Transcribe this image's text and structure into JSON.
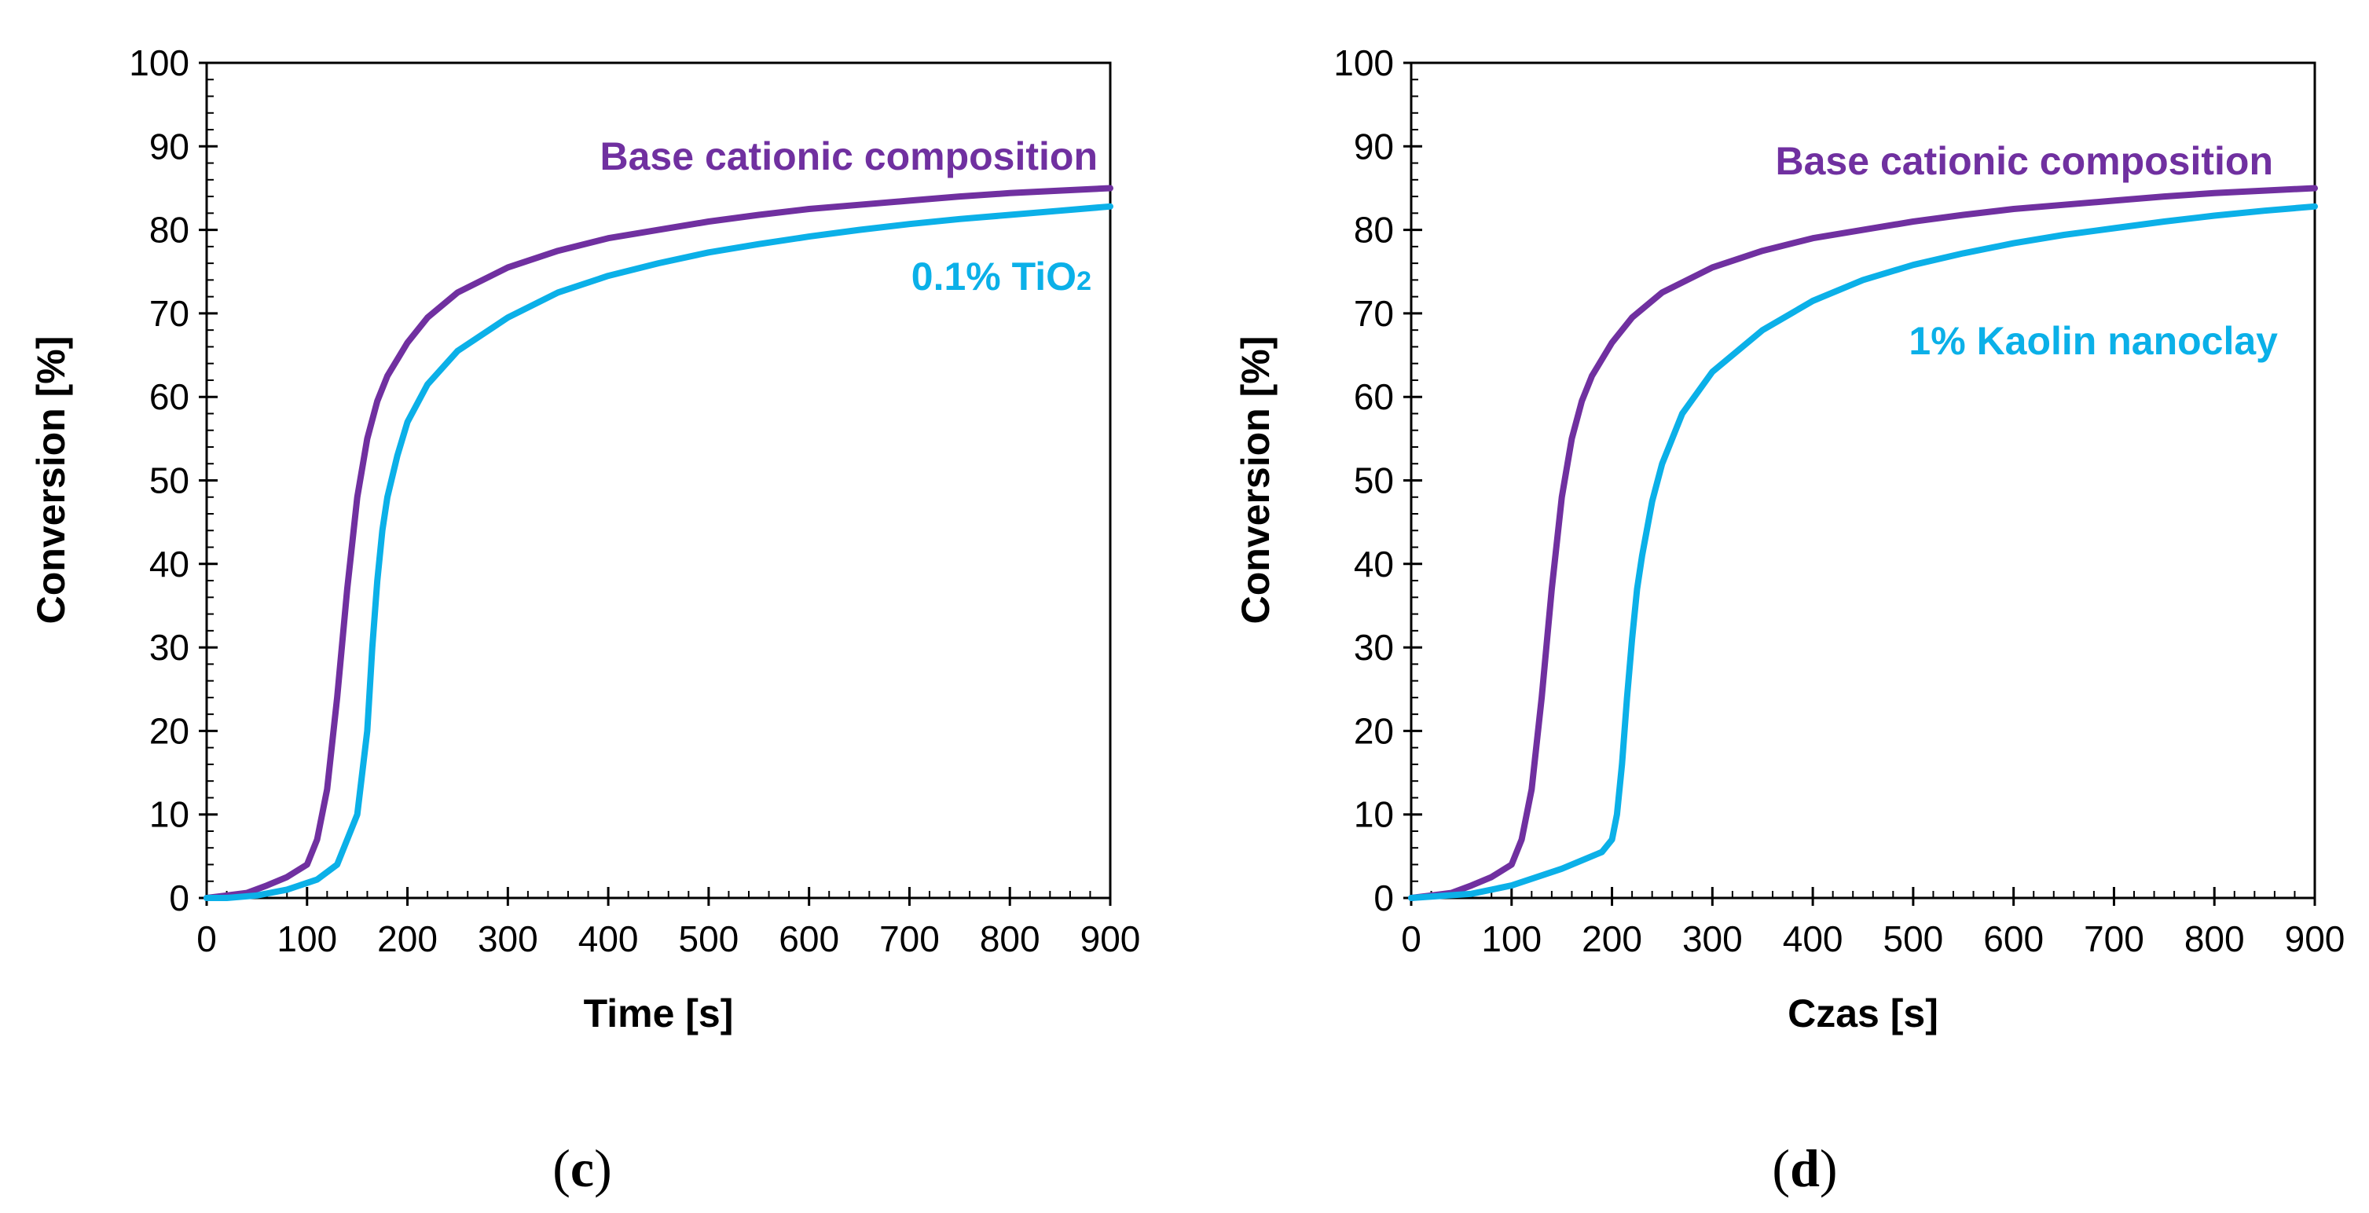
{
  "colors": {
    "base": "#7030a0",
    "additive": "#0bb0e8",
    "axis": "#000000"
  },
  "chart_data": [
    {
      "type": "line",
      "panel_label_open": "(",
      "panel_label_letter": "c",
      "panel_label_close": ")",
      "xlabel": "Time [s]",
      "ylabel": "Conversion [%]",
      "xlim": [
        0,
        900
      ],
      "ylim": [
        0,
        100
      ],
      "xticks": [
        0,
        100,
        200,
        300,
        400,
        500,
        600,
        700,
        800,
        900
      ],
      "yticks": [
        0,
        10,
        20,
        30,
        40,
        50,
        60,
        70,
        80,
        90,
        100
      ],
      "grid": false,
      "series": [
        {
          "name": "Base cationic composition",
          "color": "#7030a0",
          "x": [
            0,
            20,
            40,
            60,
            80,
            100,
            110,
            120,
            130,
            140,
            150,
            160,
            170,
            180,
            200,
            220,
            250,
            300,
            350,
            400,
            450,
            500,
            550,
            600,
            650,
            700,
            750,
            800,
            850,
            900
          ],
          "y": [
            0,
            0.3,
            0.6,
            1.5,
            2.5,
            4,
            7,
            13,
            24,
            37,
            48,
            55,
            59.5,
            62.5,
            66.5,
            69.5,
            72.5,
            75.5,
            77.5,
            79,
            80,
            81,
            81.8,
            82.5,
            83,
            83.5,
            84,
            84.4,
            84.7,
            85
          ]
        },
        {
          "name": "0.1% TiO2",
          "name_main": "0.1% TiO",
          "name_sub": "2",
          "color": "#0bb0e8",
          "x": [
            0,
            20,
            50,
            80,
            110,
            130,
            150,
            160,
            165,
            170,
            175,
            180,
            190,
            200,
            220,
            250,
            300,
            350,
            400,
            450,
            500,
            550,
            600,
            650,
            700,
            750,
            800,
            850,
            900
          ],
          "y": [
            0,
            0,
            0.3,
            1,
            2.2,
            4,
            10,
            20,
            30,
            38,
            44,
            48,
            53,
            57,
            61.5,
            65.5,
            69.5,
            72.5,
            74.5,
            76,
            77.3,
            78.3,
            79.2,
            80,
            80.7,
            81.3,
            81.8,
            82.3,
            82.8
          ]
        }
      ]
    },
    {
      "type": "line",
      "panel_label_open": "(",
      "panel_label_letter": "d",
      "panel_label_close": ")",
      "xlabel": "Czas [s]",
      "ylabel": "Conversion [%]",
      "xlim": [
        0,
        900
      ],
      "ylim": [
        0,
        100
      ],
      "xticks": [
        0,
        100,
        200,
        300,
        400,
        500,
        600,
        700,
        800,
        900
      ],
      "yticks": [
        0,
        10,
        20,
        30,
        40,
        50,
        60,
        70,
        80,
        90,
        100
      ],
      "grid": false,
      "series": [
        {
          "name": "Base cationic composition",
          "color": "#7030a0",
          "x": [
            0,
            20,
            40,
            60,
            80,
            100,
            110,
            120,
            130,
            140,
            150,
            160,
            170,
            180,
            200,
            220,
            250,
            300,
            350,
            400,
            450,
            500,
            550,
            600,
            650,
            700,
            750,
            800,
            850,
            900
          ],
          "y": [
            0,
            0.3,
            0.6,
            1.5,
            2.5,
            4,
            7,
            13,
            24,
            37,
            48,
            55,
            59.5,
            62.5,
            66.5,
            69.5,
            72.5,
            75.5,
            77.5,
            79,
            80,
            81,
            81.8,
            82.5,
            83,
            83.5,
            84,
            84.4,
            84.7,
            85
          ]
        },
        {
          "name": "1% Kaolin nanoclay",
          "color": "#0bb0e8",
          "x": [
            0,
            60,
            100,
            150,
            190,
            200,
            205,
            210,
            215,
            220,
            225,
            230,
            240,
            250,
            270,
            300,
            350,
            400,
            450,
            500,
            550,
            600,
            650,
            700,
            750,
            800,
            850,
            900
          ],
          "y": [
            0,
            0.5,
            1.5,
            3.5,
            5.5,
            7,
            10,
            16,
            24,
            31,
            37,
            41,
            47.5,
            52,
            58,
            63,
            68,
            71.5,
            74,
            75.8,
            77.2,
            78.4,
            79.4,
            80.2,
            81,
            81.7,
            82.3,
            82.8
          ]
        }
      ]
    }
  ]
}
